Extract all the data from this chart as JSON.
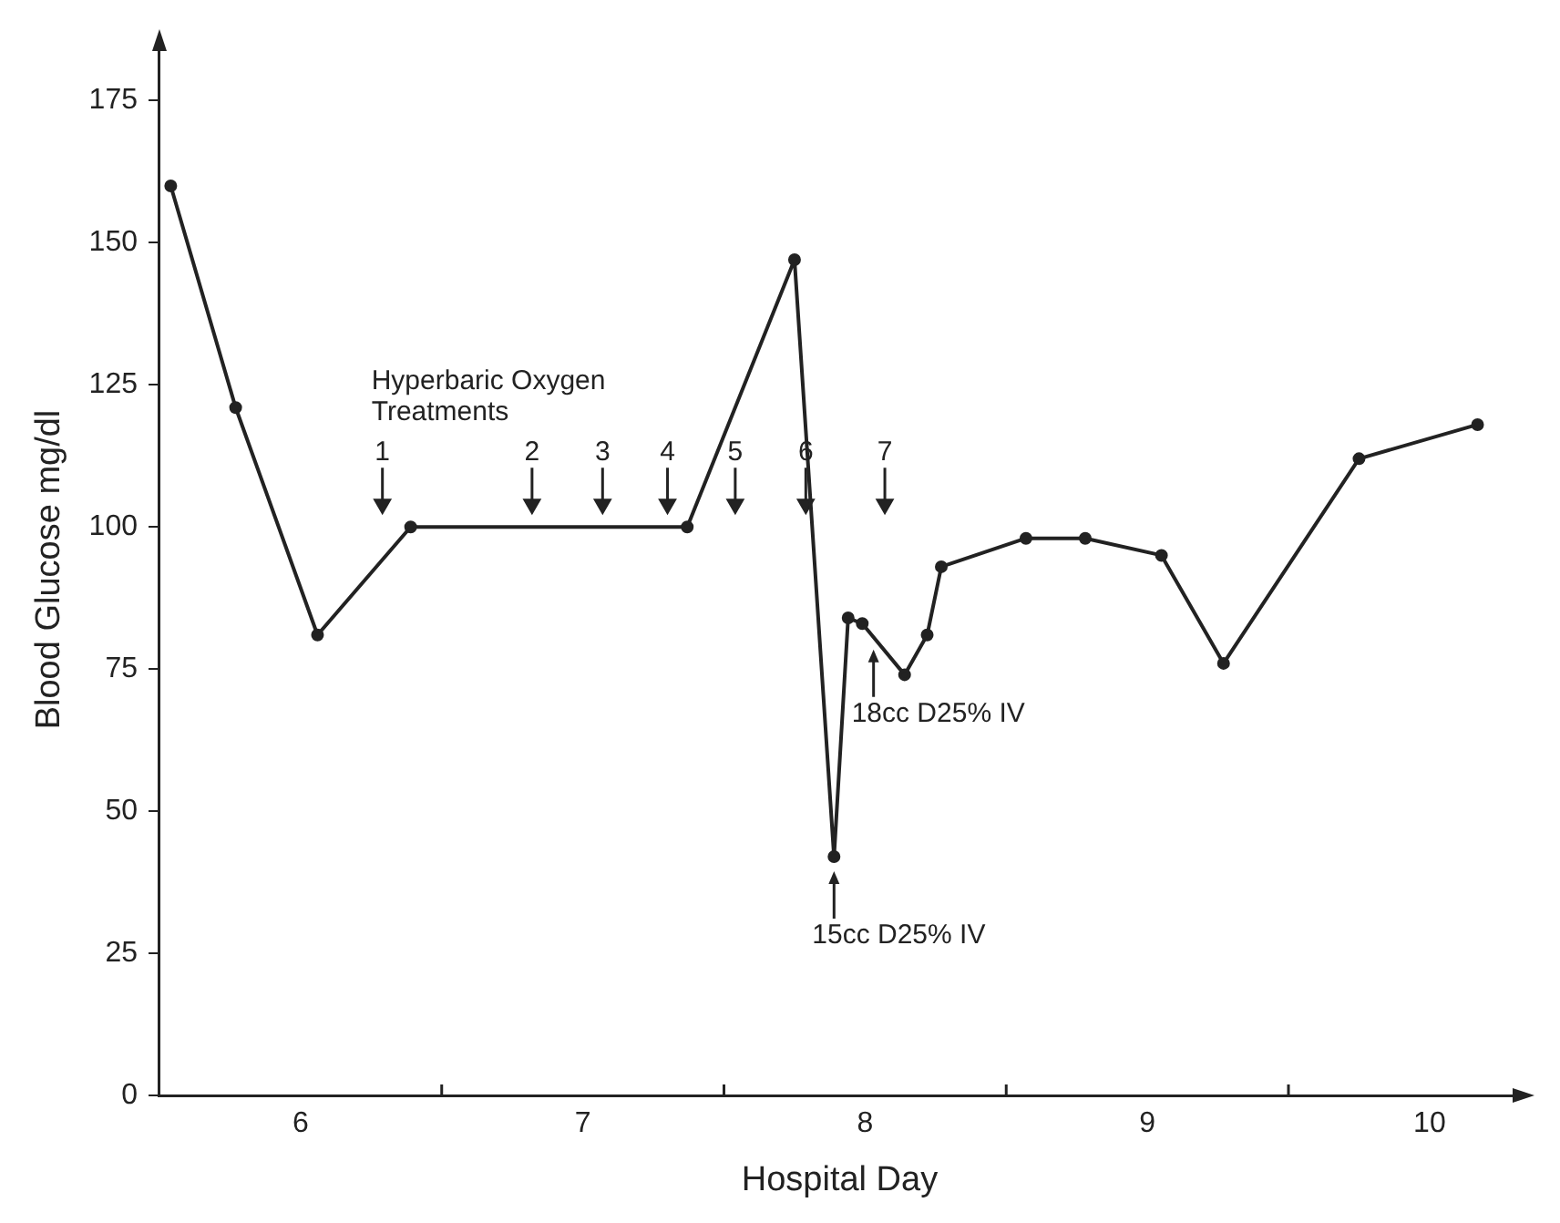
{
  "chart_data": {
    "type": "line",
    "xlabel": "Hospital Day",
    "ylabel": "Blood Glucose mg/dl",
    "x": [
      5.54,
      5.77,
      6.06,
      6.39,
      7.37,
      7.75,
      7.89,
      7.94,
      7.99,
      8.14,
      8.22,
      8.27,
      8.57,
      8.78,
      9.05,
      9.27,
      9.75,
      10.17
    ],
    "series": [
      {
        "color": "#222222",
        "values": [
          160,
          121,
          81,
          100,
          100,
          147,
          42,
          84,
          83,
          74,
          81,
          93,
          98,
          98,
          95,
          76,
          112,
          118
        ]
      },
      {
        "type": "scatter",
        "name": "Hyperbaric Oxygen Treatments",
        "color": "#222222",
        "marker": "triangle",
        "x": [
          6.29,
          6.82,
          7.07,
          7.3,
          7.54,
          7.79,
          8.07
        ],
        "values": [
          104,
          104,
          104,
          104,
          104,
          104,
          104
        ]
      }
    ],
    "xlim": [
      5.5,
      10.32
    ],
    "xticks": [
      6,
      {
        "value": 6.5,
        "label": null
      },
      7,
      {
        "value": 7.5,
        "label": null
      },
      8,
      {
        "value": 8.5,
        "label": null
      },
      9,
      {
        "value": 9.5,
        "label": null
      },
      10
    ],
    "ylim": [
      0,
      185
    ],
    "yticks": [
      0,
      25,
      50,
      75,
      100,
      125,
      150,
      175
    ],
    "grid": false,
    "legend": false,
    "marker": "circle",
    "line_style": "solid",
    "annotations": [
      {
        "text": "1",
        "x": 6.29,
        "y": 104
      },
      {
        "text": "2",
        "x": 6.82,
        "y": 104
      },
      {
        "text": "3",
        "x": 7.07,
        "y": 104
      },
      {
        "text": "4",
        "x": 7.3,
        "y": 104
      },
      {
        "text": "5",
        "x": 7.54,
        "y": 104
      },
      {
        "text": "6",
        "x": 7.79,
        "y": 104
      },
      {
        "text": "7",
        "x": 8.07,
        "y": 104
      },
      {
        "text": "18cc D25% IV",
        "x": 8.03,
        "y": 81
      },
      {
        "text": "15cc D25% IV",
        "x": 7.89,
        "y": 42
      }
    ]
  }
}
